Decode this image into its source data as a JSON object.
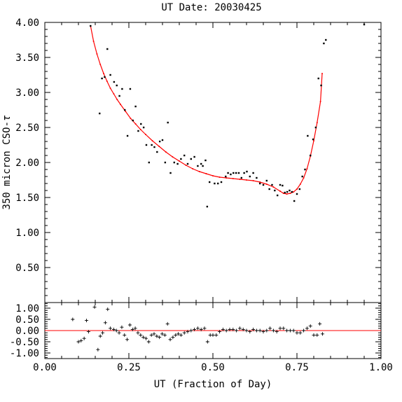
{
  "chart_data": [
    {
      "type": "scatter",
      "panel": "main",
      "title": "UT Date: 20030425",
      "xlabel": "",
      "ylabel": "350 micron CSO-",
      "ylabel_symbol": "τ",
      "xlim": [
        0.0,
        1.0
      ],
      "ylim": [
        0.0,
        4.0
      ],
      "yticks": [
        "0.50",
        "1.00",
        "1.50",
        "2.00",
        "2.50",
        "3.00",
        "3.50",
        "4.00"
      ],
      "colors": {
        "points": "#000000",
        "fit": "#ff0000"
      },
      "series": [
        {
          "kind": "points",
          "x": [
            0.136,
            0.163,
            0.17,
            0.178,
            0.186,
            0.195,
            0.206,
            0.214,
            0.222,
            0.23,
            0.238,
            0.246,
            0.254,
            0.262,
            0.27,
            0.278,
            0.286,
            0.294,
            0.302,
            0.31,
            0.318,
            0.326,
            0.334,
            0.342,
            0.35,
            0.358,
            0.366,
            0.374,
            0.385,
            0.395,
            0.405,
            0.415,
            0.425,
            0.435,
            0.445,
            0.455,
            0.465,
            0.47,
            0.478,
            0.483,
            0.49,
            0.505,
            0.515,
            0.525,
            0.538,
            0.545,
            0.553,
            0.561,
            0.569,
            0.577,
            0.585,
            0.593,
            0.601,
            0.61,
            0.62,
            0.63,
            0.64,
            0.65,
            0.66,
            0.668,
            0.676,
            0.684,
            0.692,
            0.7,
            0.707,
            0.714,
            0.721,
            0.728,
            0.735,
            0.742,
            0.75,
            0.758,
            0.766,
            0.774,
            0.782,
            0.79,
            0.798,
            0.806,
            0.814,
            0.822,
            0.83,
            0.836,
            0.95
          ],
          "y": [
            3.95,
            2.7,
            3.2,
            3.22,
            3.62,
            3.25,
            3.15,
            3.1,
            2.95,
            3.05,
            2.75,
            2.38,
            3.05,
            2.6,
            2.8,
            2.45,
            2.55,
            2.5,
            2.25,
            2.0,
            2.25,
            2.22,
            2.15,
            2.3,
            2.32,
            2.0,
            2.57,
            1.85,
            2.0,
            1.98,
            2.05,
            2.1,
            1.98,
            2.05,
            2.08,
            1.95,
            1.98,
            1.95,
            2.03,
            1.37,
            1.72,
            1.7,
            1.7,
            1.72,
            1.8,
            1.85,
            1.83,
            1.85,
            1.85,
            1.85,
            1.78,
            1.85,
            1.87,
            1.8,
            1.85,
            1.78,
            1.7,
            1.68,
            1.74,
            1.62,
            1.68,
            1.6,
            1.53,
            1.68,
            1.67,
            1.57,
            1.58,
            1.6,
            1.58,
            1.45,
            1.55,
            1.62,
            1.8,
            1.9,
            2.38,
            2.1,
            2.33,
            2.5,
            3.2,
            3.1,
            3.7,
            3.75,
            3.97
          ]
        },
        {
          "kind": "fit",
          "x": [
            0.136,
            0.145,
            0.155,
            0.165,
            0.175,
            0.185,
            0.195,
            0.205,
            0.215,
            0.225,
            0.24,
            0.255,
            0.27,
            0.285,
            0.3,
            0.32,
            0.34,
            0.36,
            0.38,
            0.4,
            0.42,
            0.44,
            0.46,
            0.48,
            0.5,
            0.52,
            0.54,
            0.56,
            0.58,
            0.6,
            0.62,
            0.64,
            0.66,
            0.68,
            0.7,
            0.71,
            0.72,
            0.73,
            0.74,
            0.75,
            0.76,
            0.77,
            0.78,
            0.79,
            0.8,
            0.81,
            0.82,
            0.825
          ],
          "y": [
            3.95,
            3.73,
            3.55,
            3.4,
            3.27,
            3.16,
            3.06,
            2.98,
            2.9,
            2.83,
            2.73,
            2.63,
            2.55,
            2.47,
            2.4,
            2.31,
            2.23,
            2.15,
            2.08,
            2.02,
            1.96,
            1.91,
            1.87,
            1.84,
            1.81,
            1.79,
            1.78,
            1.77,
            1.76,
            1.75,
            1.74,
            1.72,
            1.69,
            1.65,
            1.59,
            1.56,
            1.55,
            1.56,
            1.58,
            1.62,
            1.69,
            1.78,
            1.91,
            2.09,
            2.31,
            2.57,
            2.87,
            3.27
          ]
        }
      ]
    },
    {
      "type": "scatter",
      "panel": "residuals",
      "xlabel": "UT (Fraction of Day)",
      "ylabel": "",
      "xlim": [
        0.0,
        1.0
      ],
      "ylim": [
        -1.25,
        1.25
      ],
      "xticks": [
        "0.00",
        "0.25",
        "0.50",
        "0.75",
        "1.00"
      ],
      "yticks": [
        "1.00",
        "0.50",
        "0.00",
        "-0.50",
        "-1.00"
      ],
      "zero_line": true,
      "colors": {
        "points": "#000000",
        "zero_line": "#ff0000"
      },
      "series": [
        {
          "kind": "residuals",
          "x": [
            0.083,
            0.1,
            0.108,
            0.117,
            0.124,
            0.13,
            0.148,
            0.158,
            0.165,
            0.172,
            0.18,
            0.187,
            0.195,
            0.205,
            0.213,
            0.221,
            0.229,
            0.237,
            0.245,
            0.253,
            0.261,
            0.269,
            0.277,
            0.285,
            0.293,
            0.301,
            0.309,
            0.317,
            0.325,
            0.333,
            0.341,
            0.349,
            0.357,
            0.365,
            0.373,
            0.381,
            0.389,
            0.397,
            0.405,
            0.415,
            0.425,
            0.435,
            0.445,
            0.455,
            0.465,
            0.475,
            0.484,
            0.492,
            0.5,
            0.51,
            0.52,
            0.53,
            0.54,
            0.55,
            0.56,
            0.57,
            0.58,
            0.59,
            0.6,
            0.61,
            0.62,
            0.63,
            0.64,
            0.65,
            0.66,
            0.67,
            0.68,
            0.69,
            0.7,
            0.71,
            0.72,
            0.73,
            0.74,
            0.75,
            0.76,
            0.77,
            0.78,
            0.79,
            0.8,
            0.81,
            0.818,
            0.826
          ],
          "y": [
            0.5,
            -0.5,
            -0.45,
            -0.35,
            0.45,
            -0.05,
            1.05,
            -0.85,
            -0.25,
            -0.1,
            0.35,
            0.95,
            0.1,
            0.05,
            0.0,
            -0.1,
            0.15,
            -0.2,
            -0.4,
            0.25,
            0.05,
            0.1,
            -0.1,
            -0.2,
            -0.3,
            -0.35,
            -0.5,
            -0.2,
            -0.15,
            -0.25,
            -0.3,
            -0.15,
            -0.2,
            0.3,
            -0.4,
            -0.3,
            -0.2,
            -0.15,
            -0.2,
            -0.1,
            -0.05,
            0.0,
            0.05,
            0.1,
            0.05,
            0.1,
            -0.5,
            -0.2,
            -0.2,
            -0.2,
            -0.05,
            0.05,
            0.0,
            0.05,
            0.05,
            0.0,
            0.1,
            0.05,
            0.0,
            -0.05,
            0.05,
            0.0,
            0.0,
            -0.05,
            0.0,
            0.1,
            0.0,
            -0.05,
            0.1,
            0.1,
            0.0,
            0.0,
            0.0,
            -0.1,
            -0.1,
            0.0,
            0.1,
            0.2,
            -0.2,
            -0.2,
            0.3,
            -0.15
          ]
        }
      ]
    }
  ]
}
